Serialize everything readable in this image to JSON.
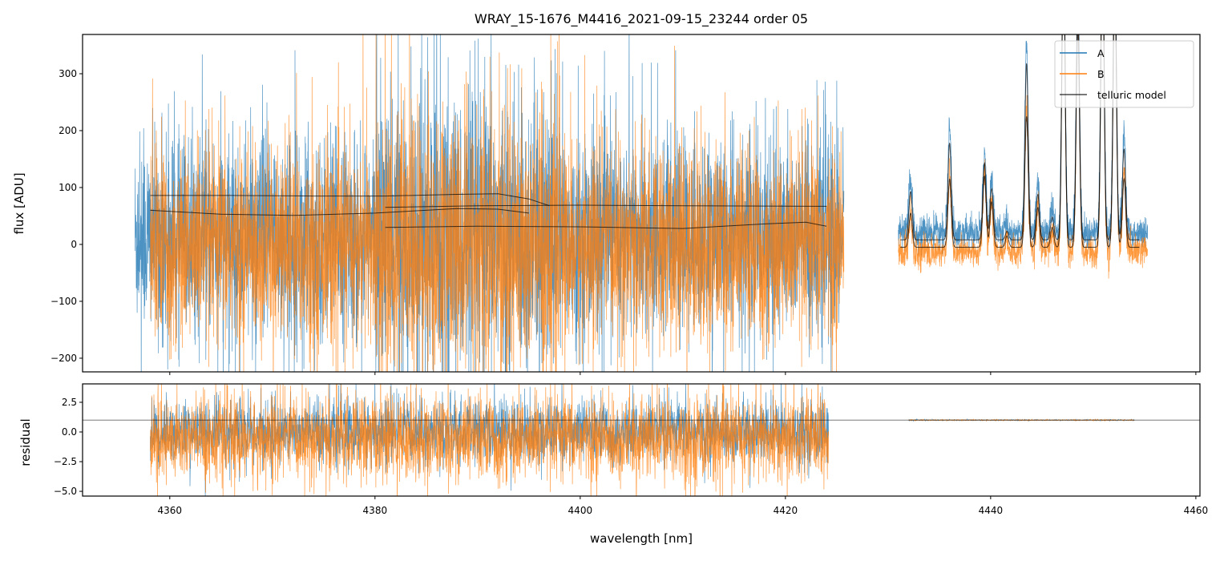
{
  "chart_data": {
    "type": "line",
    "title": "WRAY_15-1676_M4416_2021-09-15_23244  order 05",
    "xlabel": "wavelength [nm]",
    "xlim": [
      4351.5,
      4460.4
    ],
    "x_ticks": [
      4360,
      4380,
      4400,
      4420,
      4440,
      4460
    ],
    "x_tick_labels": [
      "4360",
      "4380",
      "4400",
      "4420",
      "4440",
      "4460"
    ],
    "panels": [
      {
        "name": "flux",
        "ylabel": "flux [ADU]",
        "ylim": [
          -224,
          369
        ],
        "y_ticks": [
          -200,
          -100,
          0,
          100,
          200,
          300
        ],
        "y_tick_labels": [
          "−200",
          "−100",
          "0",
          "100",
          "200",
          "300"
        ],
        "legend": {
          "placement": "top-right",
          "entries": [
            "A",
            "B",
            "telluric model"
          ]
        },
        "series": [
          {
            "name": "A",
            "color": "#1f77b4",
            "segments": [
              {
                "x_range": [
                  4356.6,
                  4425.7
                ],
                "mean": 15,
                "sigma": 85,
                "sigma_dense_region": [
                  4380,
                  4398,
                  120
                ]
              },
              {
                "x_range": [
                  4431.0,
                  4455.3
                ],
                "offset": 12,
                "sigma": 14,
                "model": "A"
              }
            ]
          },
          {
            "name": "B",
            "color": "#ff7f0e",
            "segments": [
              {
                "x_range": [
                  4358.1,
                  4425.7
                ],
                "mean": -5,
                "sigma": 85,
                "sigma_dense_region": [
                  4380,
                  4398,
                  120
                ]
              },
              {
                "x_range": [
                  4431.0,
                  4455.3
                ],
                "offset": -8,
                "sigma": 14,
                "model": "B"
              }
            ]
          }
        ],
        "telluric_model": {
          "color": "#000000",
          "left_curves": [
            [
              [
                4358.1,
                86
              ],
              [
                4366,
                86
              ],
              [
                4374,
                85
              ],
              [
                4381,
                85
              ],
              [
                4388,
                88
              ],
              [
                4392,
                89
              ],
              [
                4395,
                80
              ],
              [
                4397,
                68
              ]
            ],
            [
              [
                4358.1,
                60
              ],
              [
                4365,
                53
              ],
              [
                4372,
                51
              ],
              [
                4380,
                55
              ],
              [
                4388,
                63
              ],
              [
                4392,
                62
              ],
              [
                4395,
                55
              ]
            ],
            [
              [
                4381,
                65
              ],
              [
                4390,
                68
              ],
              [
                4400,
                69
              ],
              [
                4410,
                68
              ],
              [
                4424,
                67
              ]
            ],
            [
              [
                4381,
                30
              ],
              [
                4390,
                32
              ],
              [
                4400,
                31
              ],
              [
                4410,
                28
              ],
              [
                4418,
                36
              ],
              [
                4422,
                39
              ],
              [
                4424,
                32
              ]
            ]
          ],
          "right_segment": [
            4431.2,
            4454.5
          ],
          "right_baselines": {
            "A": 8,
            "B": -5
          },
          "right_peaks": [
            {
              "x": 4432.2,
              "A": 85,
              "B": 60
            },
            {
              "x": 4436.0,
              "A": 170,
              "B": 120
            },
            {
              "x": 4439.4,
              "A": 135,
              "B": 125
            },
            {
              "x": 4440.1,
              "A": 90,
              "B": 80
            },
            {
              "x": 4441.6,
              "A": 15,
              "B": 20
            },
            {
              "x": 4443.5,
              "A": 310,
              "B": 230
            },
            {
              "x": 4444.6,
              "A": 80,
              "B": 70
            },
            {
              "x": 4446.0,
              "A": 40,
              "B": 35
            },
            {
              "x": 4447.1,
              "A": 500,
              "B": 500
            },
            {
              "x": 4448.5,
              "A": 420,
              "B": 380
            },
            {
              "x": 4450.9,
              "A": 520,
              "B": 520
            },
            {
              "x": 4452.1,
              "A": 480,
              "B": 480
            },
            {
              "x": 4453.0,
              "A": 160,
              "B": 120
            }
          ],
          "peak_sigma_nm": 0.16
        }
      },
      {
        "name": "residual",
        "ylabel": "residual",
        "ylim": [
          -5.4,
          4.05
        ],
        "y_ticks": [
          -5.0,
          -2.5,
          0.0,
          2.5
        ],
        "y_tick_labels": [
          "−5.0",
          "−2.5",
          "0.0",
          "2.5"
        ],
        "reference_line": 1.0,
        "series": [
          {
            "name": "A",
            "color": "#1f77b4",
            "segments": [
              {
                "x_range": [
                  4358.1,
                  4424.2
                ],
                "mean": 0.0,
                "sigma": 1.3
              },
              {
                "x_range": [
                  4432.0,
                  4454.0
                ],
                "mean": 1.0,
                "sigma": 0.02
              }
            ]
          },
          {
            "name": "B",
            "color": "#ff7f0e",
            "segments": [
              {
                "x_range": [
                  4358.1,
                  4424.2
                ],
                "mean": -0.6,
                "sigma": 1.8
              },
              {
                "x_range": [
                  4432.0,
                  4454.0
                ],
                "mean": 1.0,
                "sigma": 0.02
              }
            ]
          }
        ]
      }
    ]
  }
}
